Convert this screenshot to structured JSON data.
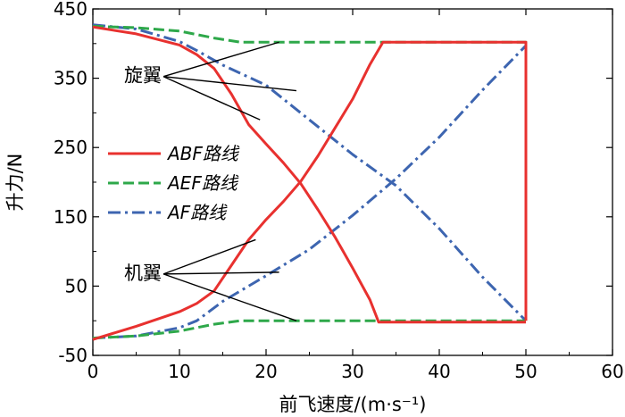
{
  "chart_data": {
    "type": "line",
    "xlabel": "前飞速度/(m·s⁻¹)",
    "ylabel": "升力/N",
    "xlim": [
      0,
      60
    ],
    "ylim": [
      -50,
      450
    ],
    "xticks": [
      0,
      10,
      20,
      30,
      40,
      50,
      60
    ],
    "yticks": [
      -50,
      50,
      150,
      250,
      350,
      450
    ],
    "grid": false,
    "legend_position": "left",
    "series": [
      {
        "name": "ABF-rotor",
        "legend": "ABF路线",
        "color": "#e8312f",
        "dash": "solid",
        "x": [
          0,
          5,
          10,
          12,
          14,
          16,
          18,
          20,
          22,
          24,
          26,
          28,
          30,
          32,
          33,
          34,
          50
        ],
        "y": [
          424,
          414,
          398,
          384,
          364,
          327,
          283,
          255,
          228,
          198,
          160,
          120,
          76,
          30,
          -2,
          -2,
          -2
        ]
      },
      {
        "name": "ABF-wing",
        "legend": "",
        "color": "#e8312f",
        "dash": "solid",
        "x": [
          0,
          5,
          10,
          12,
          14,
          16,
          18,
          20,
          22,
          24,
          26,
          28,
          30,
          32,
          33.5,
          50,
          50
        ],
        "y": [
          -27,
          -8,
          13,
          25,
          43,
          80,
          117,
          146,
          172,
          201,
          238,
          279,
          320,
          370,
          402,
          402,
          0
        ]
      },
      {
        "name": "AEF-rotor",
        "legend": "AEF路线",
        "color": "#2ea84a",
        "dash": "dashed",
        "x": [
          0,
          5,
          10,
          14,
          17,
          20,
          30,
          40,
          50,
          50
        ],
        "y": [
          425,
          423,
          418,
          408,
          402,
          402,
          402,
          402,
          402,
          0
        ]
      },
      {
        "name": "AEF-wing",
        "legend": "",
        "color": "#2ea84a",
        "dash": "dashed",
        "x": [
          0,
          5,
          10,
          14,
          17,
          20,
          30,
          40,
          50
        ],
        "y": [
          -25,
          -22,
          -15,
          -5,
          0,
          0,
          0,
          0,
          0
        ]
      },
      {
        "name": "AF-rotor",
        "legend": "AF路线",
        "color": "#3d65b0",
        "dash": "dashdot",
        "x": [
          0,
          5,
          10,
          12,
          15,
          20,
          25,
          30,
          35,
          40,
          45,
          50
        ],
        "y": [
          427,
          421,
          403,
          390,
          369,
          340,
          290,
          240,
          195,
          133,
          63,
          0
        ]
      },
      {
        "name": "AF-wing",
        "legend": "",
        "color": "#3d65b0",
        "dash": "dashdot",
        "x": [
          0,
          5,
          10,
          12,
          15,
          20,
          25,
          30,
          35,
          40,
          45,
          50
        ],
        "y": [
          -25,
          -22,
          -10,
          0,
          28,
          65,
          103,
          152,
          205,
          265,
          333,
          397
        ]
      }
    ],
    "annotations": [
      {
        "text": "旋翼",
        "x": 3.2,
        "y": 355,
        "targets": [
          [
            21.5,
            402
          ],
          [
            23.5,
            332
          ],
          [
            19.3,
            290
          ]
        ]
      },
      {
        "text": "机翼",
        "x": 3.2,
        "y": 70,
        "targets": [
          [
            18.8,
            117
          ],
          [
            21.5,
            70
          ],
          [
            23.5,
            0
          ]
        ]
      }
    ]
  }
}
